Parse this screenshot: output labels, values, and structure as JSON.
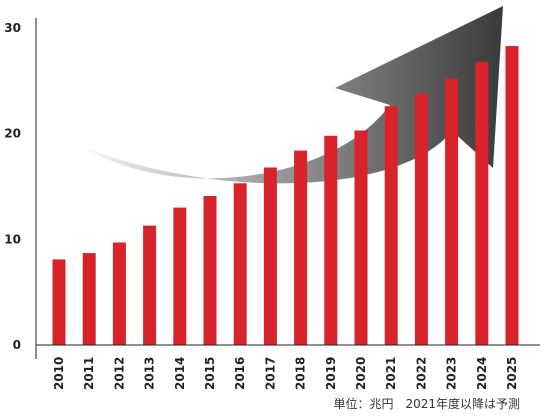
{
  "chart_data": {
    "type": "bar",
    "categories": [
      "2010",
      "2011",
      "2012",
      "2013",
      "2014",
      "2015",
      "2016",
      "2017",
      "2018",
      "2019",
      "2020",
      "2021",
      "2022",
      "2023",
      "2024",
      "2025"
    ],
    "values": [
      8.1,
      8.7,
      9.7,
      11.3,
      13.0,
      14.1,
      15.3,
      16.8,
      18.4,
      19.8,
      20.3,
      22.6,
      23.8,
      25.2,
      26.8,
      28.3
    ],
    "title": "",
    "xlabel": "",
    "ylabel": "",
    "ylim": [
      0,
      30
    ],
    "yticks": [
      0,
      10,
      20,
      30
    ],
    "grid": false,
    "legend": "none",
    "note": "単位：兆円　2021年度以降は予測",
    "colors": {
      "bar": "#d8232a",
      "axis": "#222222",
      "arrow_dark": "#3a3a3a",
      "arrow_light": "#f2f2f2"
    }
  }
}
